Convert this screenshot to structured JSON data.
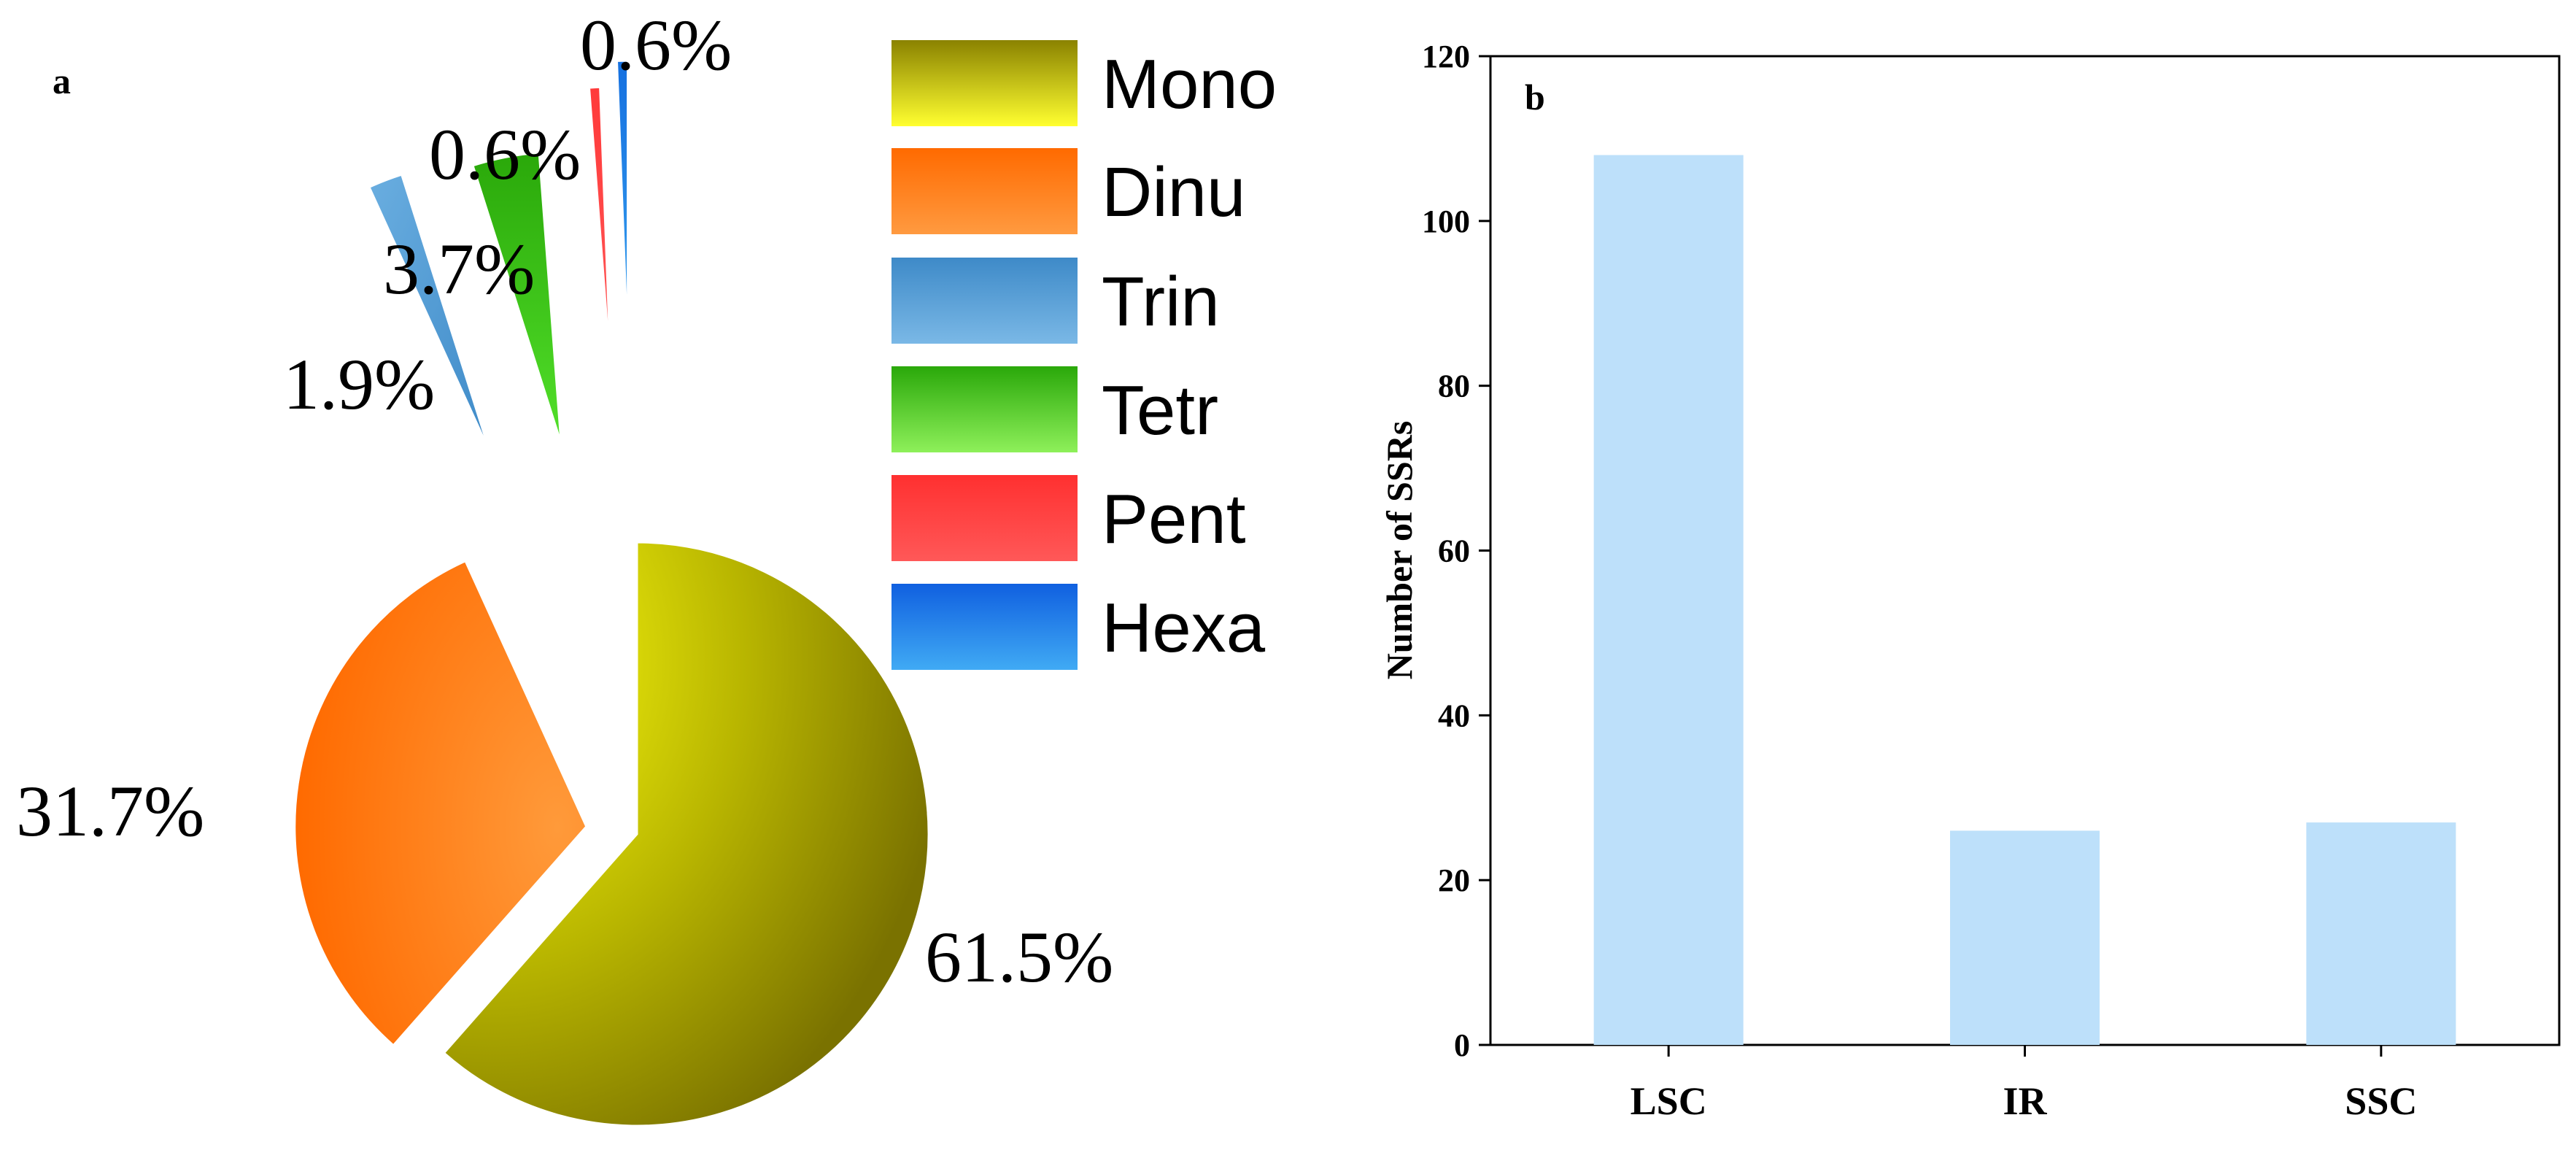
{
  "chart_data": [
    {
      "panel": "a",
      "type": "pie",
      "slices": [
        {
          "name": "Mono",
          "value": 61.5,
          "label": "61.5%",
          "color": "#b5b300"
        },
        {
          "name": "Dinu",
          "value": 31.7,
          "label": "31.7%",
          "color": "#ff7a10"
        },
        {
          "name": "Trin",
          "value": 1.9,
          "label": "1.9%",
          "color": "#5a9ed4"
        },
        {
          "name": "Tetr",
          "value": 3.7,
          "label": "3.7%",
          "color": "#3ec418"
        },
        {
          "name": "Pent",
          "value": 0.6,
          "label": "0.6%",
          "color": "#ff4a4a"
        },
        {
          "name": "Hexa",
          "value": 0.6,
          "label": "0.6%",
          "color": "#1f8ae8"
        }
      ],
      "legend": [
        "Mono",
        "Dinu",
        "Trin",
        "Tetr",
        "Pent",
        "Hexa"
      ],
      "legend_position": "top-right"
    },
    {
      "panel": "b",
      "type": "bar",
      "categories": [
        "LSC",
        "IR",
        "SSC"
      ],
      "values": [
        108,
        26,
        27
      ],
      "ylabel": "Number of SSRs",
      "ylim": [
        0,
        120
      ],
      "yticks": [
        "0",
        "20",
        "40",
        "60",
        "80",
        "100",
        "120"
      ],
      "bar_color": "#bde0fa",
      "grid": false
    }
  ]
}
